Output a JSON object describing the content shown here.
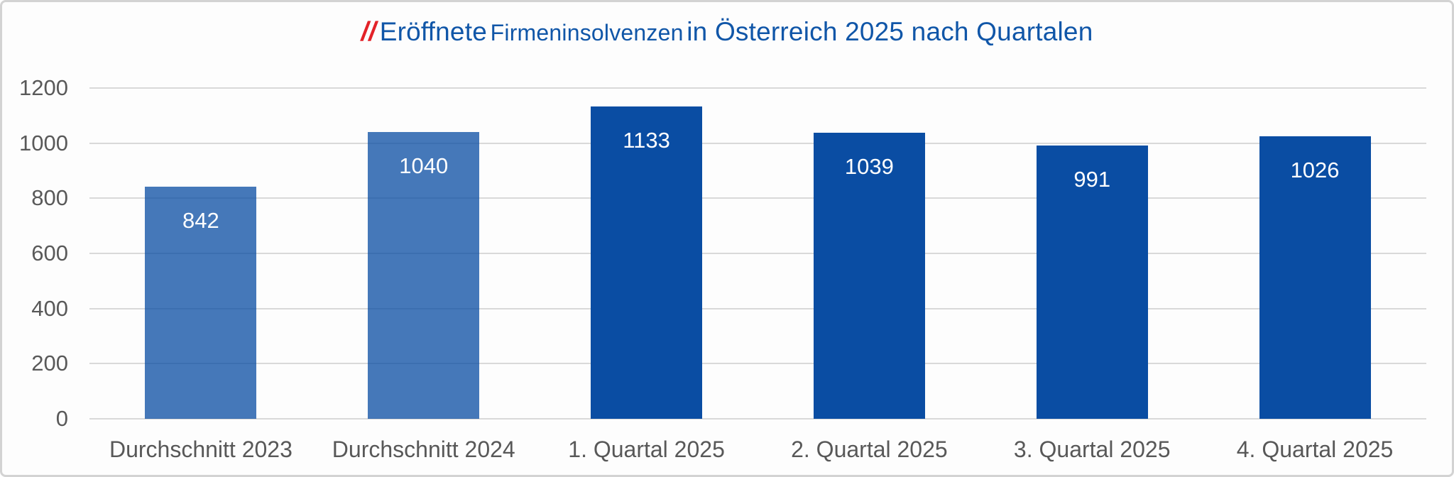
{
  "title": {
    "prefix": "//",
    "part1": "Eröffnete",
    "part2": "Firmeninsolvenzen",
    "part3": "in Österreich 2025 nach Quartalen"
  },
  "chart_data": {
    "type": "bar",
    "title": "// Eröffnete Firmeninsolvenzen in Österreich 2025 nach Quartalen",
    "categories": [
      "Durchschnitt 2023",
      "Durchschnitt 2024",
      "1. Quartal 2025",
      "2. Quartal 2025",
      "3. Quartal 2025",
      "4. Quartal 2025"
    ],
    "values": [
      842,
      1040,
      1133,
      1039,
      991,
      1026
    ],
    "bar_colors": [
      "rgba(10,77,163,0.76)",
      "rgba(10,77,163,0.76)",
      "#0a4da3",
      "#0a4da3",
      "#0a4da3",
      "#0a4da3"
    ],
    "value_label_color": "#ffffff",
    "xlabel": "",
    "ylabel": "",
    "ylim": [
      0,
      1200
    ],
    "yticks": [
      0,
      200,
      400,
      600,
      800,
      1000,
      1200
    ],
    "grid": true,
    "legend": false
  },
  "colors": {
    "accent_red": "#e32228",
    "title_blue": "#1056a8",
    "bar_light": "#4578b9",
    "bar_dark": "#0a4da3",
    "gridline": "#d9d9d9",
    "axis_text": "#595959",
    "frame_border": "#d3d3d3"
  }
}
